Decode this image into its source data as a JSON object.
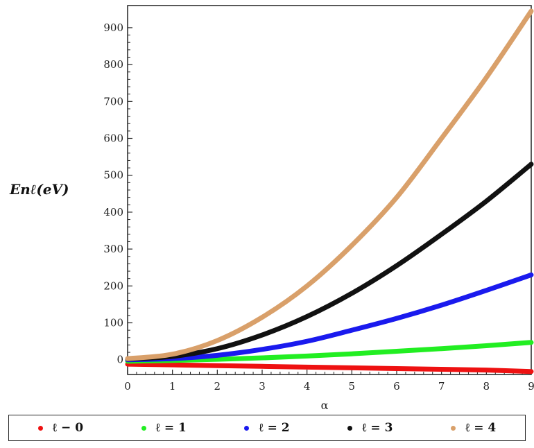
{
  "chart_data": {
    "type": "line",
    "xlabel": "α",
    "ylabel": "Enℓ(eV)",
    "xlim": [
      0,
      9
    ],
    "ylim": [
      -40,
      960
    ],
    "x_ticks": [
      "0",
      "1",
      "2",
      "3",
      "4",
      "5",
      "6",
      "7",
      "8",
      "9"
    ],
    "y_ticks": [
      "0",
      "100",
      "200",
      "300",
      "400",
      "500",
      "600",
      "700",
      "800",
      "900"
    ],
    "grid": false,
    "legend_position": "bottom",
    "x": [
      0,
      1,
      2,
      3,
      4,
      5,
      6,
      7,
      8,
      9
    ],
    "series": [
      {
        "name": "ℓ = 0",
        "color": "#ee1111",
        "values": [
          -12,
          -14,
          -16,
          -18,
          -20,
          -22,
          -24,
          -26,
          -28,
          -32
        ]
      },
      {
        "name": "ℓ = 1",
        "color": "#22ee22",
        "values": [
          -4,
          -2,
          1,
          5,
          10,
          16,
          23,
          30,
          38,
          47
        ]
      },
      {
        "name": "ℓ = 2",
        "color": "#1a1aee",
        "values": [
          0,
          3,
          12,
          28,
          50,
          80,
          112,
          148,
          188,
          230
        ]
      },
      {
        "name": "ℓ = 3",
        "color": "#111111",
        "values": [
          2,
          9,
          30,
          67,
          117,
          180,
          255,
          340,
          430,
          530
        ]
      },
      {
        "name": "ℓ = 4",
        "color": "#d9a06a",
        "values": [
          3,
          15,
          52,
          115,
          200,
          310,
          440,
          600,
          765,
          945
        ]
      }
    ]
  },
  "legend": {
    "items": [
      {
        "label": "ℓ − 0",
        "color": "#ee1111"
      },
      {
        "label": "ℓ = 1",
        "color": "#22ee22"
      },
      {
        "label": "ℓ =  2",
        "color": "#1a1aee"
      },
      {
        "label": "ℓ = 3",
        "color": "#111111"
      },
      {
        "label": "ℓ = 4",
        "color": "#d9a06a"
      }
    ]
  }
}
